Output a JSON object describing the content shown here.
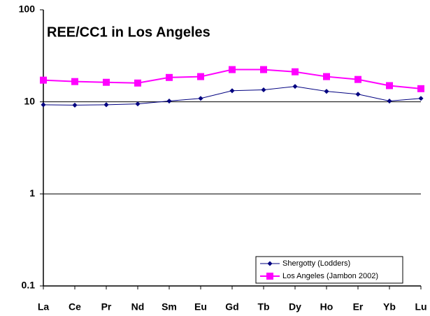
{
  "chart_data": {
    "type": "line",
    "title": "REE/CC1 in Los Angeles",
    "categories": [
      "La",
      "Ce",
      "Pr",
      "Nd",
      "Sm",
      "Eu",
      "Gd",
      "Tb",
      "Dy",
      "Ho",
      "Er",
      "Yb",
      "Lu"
    ],
    "series": [
      {
        "name": "Shergotty (Lodders)",
        "color": "#000080",
        "values": [
          9.3,
          9.2,
          9.3,
          9.5,
          10.2,
          10.9,
          13.2,
          13.5,
          14.7,
          13.0,
          12.1,
          10.2,
          10.9
        ]
      },
      {
        "name": "Los Angeles (Jambon 2002)",
        "color": "#ff00ff",
        "values": [
          17.2,
          16.6,
          16.3,
          16.0,
          18.4,
          18.8,
          22.4,
          22.4,
          21.2,
          18.8,
          17.5,
          15.0,
          13.9
        ]
      }
    ],
    "ylim": [
      0.1,
      100
    ],
    "yticks": [
      0.1,
      1,
      10,
      100
    ],
    "log_scale": true,
    "grid": true,
    "legend": "lower right"
  }
}
